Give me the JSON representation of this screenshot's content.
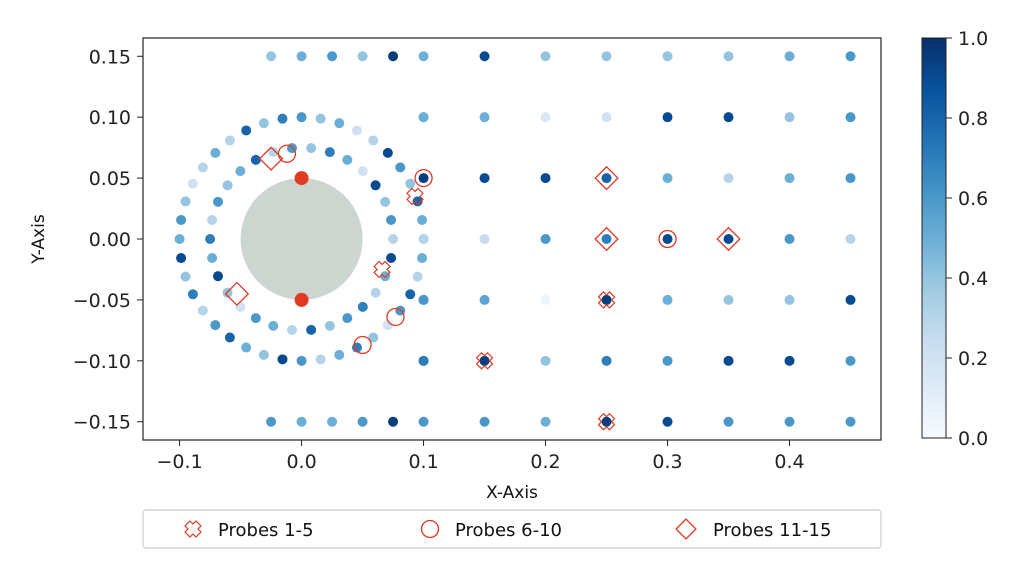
{
  "chart_data": {
    "type": "scatter",
    "xlabel": "X-Axis",
    "ylabel": "Y-Axis",
    "xlim": [
      -0.13,
      0.475
    ],
    "ylim": [
      -0.165,
      0.165
    ],
    "xticks": [
      -0.1,
      0.0,
      0.1,
      0.2,
      0.3,
      0.4
    ],
    "xtick_labels": [
      "−0.1",
      "0.0",
      "0.1",
      "0.2",
      "0.3",
      "0.4"
    ],
    "yticks": [
      0.15,
      0.1,
      0.05,
      0.0,
      -0.05,
      -0.1,
      -0.15
    ],
    "ytick_labels": [
      "0.15",
      "0.10",
      "0.05",
      "0.00",
      "−0.05",
      "−0.10",
      "−0.15"
    ],
    "colorbar": {
      "min": 0.0,
      "max": 1.0,
      "ticks": [
        0.0,
        0.2,
        0.4,
        0.6,
        0.8,
        1.0
      ],
      "tick_labels": [
        "0.0",
        "0.2",
        "0.4",
        "0.6",
        "0.8",
        "1.0"
      ],
      "colormap": "Blues"
    },
    "cylinder": {
      "cx": 0.0,
      "cy": 0.0,
      "r": 0.05,
      "color": "#cdd5d1"
    },
    "red_points": [
      [
        0.0,
        0.05
      ],
      [
        0.0,
        -0.05
      ]
    ],
    "red_color": "#e03a22",
    "marker_color": "#e03a22",
    "legend": {
      "position": "bottom",
      "entries": [
        {
          "label": "Probes 1-5",
          "marker": "x-cross"
        },
        {
          "label": "Probes 6-10",
          "marker": "circle"
        },
        {
          "label": "Probes 11-15",
          "marker": "diamond"
        }
      ]
    },
    "probes": {
      "probes_1_5": [
        [
          0.093,
          0.035
        ],
        [
          0.066,
          -0.025
        ],
        [
          0.15,
          -0.1
        ],
        [
          0.25,
          -0.05
        ],
        [
          0.25,
          -0.15
        ]
      ],
      "probes_6_10": [
        [
          -0.012,
          0.07
        ],
        [
          0.1,
          0.05
        ],
        [
          0.3,
          0.0
        ],
        [
          0.077,
          -0.064
        ],
        [
          0.05,
          -0.087
        ]
      ],
      "probes_11_15": [
        [
          -0.025,
          0.066
        ],
        [
          0.25,
          0.05
        ],
        [
          0.25,
          0.0
        ],
        [
          0.35,
          0.0
        ],
        [
          -0.053,
          -0.045
        ]
      ]
    },
    "grid_x": [
      0.1,
      0.15,
      0.2,
      0.25,
      0.3,
      0.35,
      0.4,
      0.45
    ],
    "grid_y": [
      0.15,
      0.1,
      0.05,
      0.0,
      -0.05,
      -0.1,
      -0.15
    ],
    "grid_values": [
      [
        0.5,
        0.9,
        0.4,
        0.4,
        0.4,
        0.4,
        0.5,
        0.6
      ],
      [
        0.5,
        0.5,
        0.15,
        0.2,
        0.9,
        0.9,
        0.4,
        0.6
      ],
      [
        0.95,
        0.9,
        0.9,
        0.8,
        0.5,
        0.3,
        0.5,
        0.6
      ],
      [
        0.3,
        0.25,
        0.6,
        0.7,
        0.9,
        0.9,
        0.6,
        0.3
      ],
      [
        0.6,
        0.55,
        0.05,
        0.95,
        0.5,
        0.4,
        0.4,
        0.9
      ],
      [
        0.7,
        0.95,
        0.4,
        0.7,
        0.6,
        0.9,
        0.9,
        0.6
      ],
      [
        0.6,
        0.6,
        0.5,
        0.95,
        0.9,
        0.6,
        0.6,
        0.6
      ]
    ],
    "top_row": [
      {
        "x": -0.025,
        "y": 0.15,
        "v": 0.4
      },
      {
        "x": 0.0,
        "y": 0.15,
        "v": 0.5
      },
      {
        "x": 0.025,
        "y": 0.15,
        "v": 0.6
      },
      {
        "x": 0.05,
        "y": 0.15,
        "v": 0.4
      },
      {
        "x": 0.075,
        "y": 0.15,
        "v": 0.95
      }
    ],
    "bottom_row": [
      {
        "x": -0.025,
        "y": -0.15,
        "v": 0.6
      },
      {
        "x": 0.0,
        "y": -0.15,
        "v": 0.5
      },
      {
        "x": 0.025,
        "y": -0.15,
        "v": 0.5
      },
      {
        "x": 0.05,
        "y": -0.15,
        "v": 0.6
      },
      {
        "x": 0.075,
        "y": -0.15,
        "v": 0.95
      }
    ],
    "extra_points": [
      {
        "x": 0.1,
        "y": 0.1,
        "v": 0.5
      },
      {
        "x": 0.1,
        "y": 0.0,
        "v": 0.3
      },
      {
        "x": 0.1,
        "y": -0.05,
        "v": 0.6
      },
      {
        "x": 0.1,
        "y": -0.1,
        "v": 0.7
      }
    ],
    "outer_ring": {
      "r": 0.1,
      "values": [
        0.3,
        0.5,
        0.8,
        0.4,
        0.6,
        0.9,
        0.3,
        0.2,
        0.5,
        0.4,
        0.6,
        0.7,
        0.4,
        0.8,
        0.3,
        0.5,
        0.3,
        0.2,
        0.4,
        0.6,
        0.5,
        0.9,
        0.4,
        0.7,
        0.3,
        0.6,
        0.8,
        0.5,
        0.4,
        0.9,
        0.6,
        0.3,
        0.5,
        0.7,
        0.4,
        0.2,
        0.6,
        0.8,
        0.3,
        0.5
      ]
    },
    "inner_ring": {
      "r": 0.075,
      "values": [
        0.3,
        0.6,
        0.4,
        0.9,
        0.2,
        0.5,
        0.7,
        0.4,
        0.6,
        0.3,
        0.8,
        0.5,
        0.4,
        0.6,
        0.3,
        0.7,
        0.5,
        0.9,
        0.4,
        0.2,
        0.6,
        0.5,
        0.3,
        0.8,
        0.4,
        0.6,
        0.7,
        0.3,
        0.5,
        0.9
      ]
    }
  }
}
